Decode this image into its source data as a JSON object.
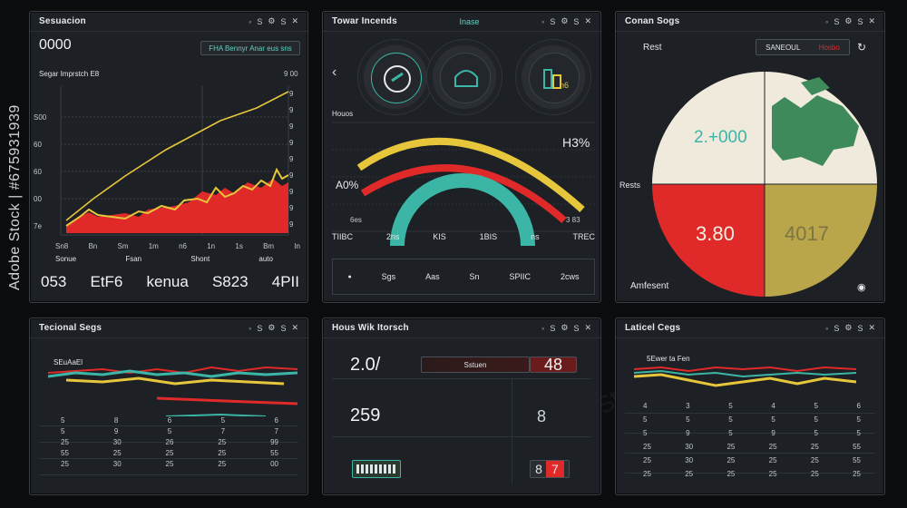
{
  "watermark": "Adobe Stock | #675931939",
  "watermark_faint": "Adobe Stock",
  "colors": {
    "bg": "#0b0c0e",
    "panel": "#1d2024",
    "yellow": "#e6c63a",
    "red": "#e02a2a",
    "teal": "#3bb6a6",
    "olive": "#b9a64a",
    "cream": "#efeadb",
    "green": "#3e8a5a"
  },
  "panel1": {
    "title": "Sesuacion",
    "header_icons": [
      "S",
      "S"
    ],
    "big_value": "0000",
    "badge": "FHA Bennyr Anar eus sns",
    "chart_title": "Segar Imprstch E8",
    "chart_tag": "9 00",
    "ylabels": [
      "S00",
      "60",
      "60",
      "00",
      "7e"
    ],
    "yright": [
      "9",
      "9",
      "9",
      "9",
      "9",
      "9",
      "9",
      "9",
      "9"
    ],
    "xlabels": [
      "Sn8",
      "Bn",
      "Sm",
      "1m",
      "n6",
      "1n",
      "1s",
      "Bm",
      "In"
    ],
    "footer_labels": [
      "Sonue",
      "Fsan",
      "Shont",
      "auto"
    ],
    "stats": [
      "053",
      "EtF6",
      "kenua",
      "S823",
      "4PII"
    ]
  },
  "panel2": {
    "title": "Towar Incends",
    "title_tag": "Inase",
    "header_icons": [
      "S",
      "S"
    ],
    "section_label": "Houos",
    "gauge_right": "H3%",
    "gauge_left": "A0%",
    "gauge_bl": "6es",
    "gauge_br": "3 83",
    "metrics": [
      "TIIBC",
      "2ns",
      "KIS",
      "1BIS",
      "ns",
      "TREC"
    ],
    "tabs": [
      "Sgs",
      "Aas",
      "Sn",
      "SPIIC",
      "2cws"
    ],
    "dial3_label": "n6"
  },
  "panel3": {
    "title": "Conan Sogs",
    "header_icons": [
      "S",
      "S"
    ],
    "left_label": "Rest",
    "badge_left": "SANEOUL",
    "badge_right": "Hosbo",
    "side_label": "Rests",
    "pie_tl": "2.+000",
    "pie_bl": "3.80",
    "pie_br": "4017",
    "footer": "Amfesent"
  },
  "panel4": {
    "title": "Tecional Segs",
    "header_icons": [
      "S",
      "S"
    ],
    "legend": "SEuAaEl",
    "rows": [
      [
        "5",
        "8",
        "6",
        "5",
        "6"
      ],
      [
        "5",
        "9",
        "5",
        "7",
        "7"
      ],
      [
        "25",
        "30",
        "26",
        "25",
        "99"
      ],
      [
        "55",
        "25",
        "25",
        "25",
        "55"
      ],
      [
        "25",
        "30",
        "25",
        "25",
        "00"
      ]
    ]
  },
  "panel5": {
    "title": "Hous Wik Itorsch",
    "header_icons": [
      "S",
      "S"
    ],
    "v1": "2.0/",
    "label1": "Sstuen",
    "v2": "48",
    "v3": "259",
    "v4": "8",
    "v5": "8",
    "v6": "7"
  },
  "panel6": {
    "title": "Laticel Cegs",
    "header_icons": [
      "S",
      "S"
    ],
    "legend": "5Ewer ta Fen",
    "rows": [
      [
        "4",
        "3",
        "5",
        "4",
        "5",
        "6"
      ],
      [
        "5",
        "5",
        "5",
        "5",
        "5",
        "5"
      ],
      [
        "5",
        "9",
        "5",
        "9",
        "5",
        "5"
      ],
      [
        "25",
        "30",
        "25",
        "25",
        "25",
        "55"
      ],
      [
        "25",
        "30",
        "25",
        "25",
        "25",
        "55"
      ],
      [
        "25",
        "25",
        "25",
        "25",
        "25",
        "25"
      ]
    ]
  }
}
